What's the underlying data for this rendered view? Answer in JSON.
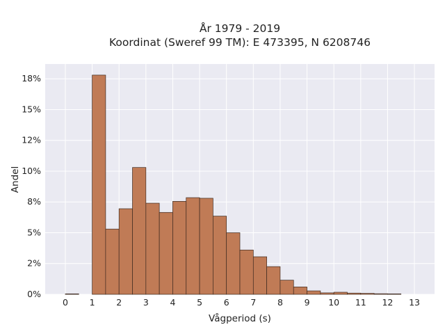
{
  "chart_data": {
    "type": "bar",
    "title_lines": [
      "År 1979 - 2019",
      "Koordinat (Sweref 99 TM): E 473395, N 6208746"
    ],
    "xlabel": "Vågperiod (s)",
    "ylabel": "Andel",
    "x_ticks": [
      "0",
      "1",
      "2",
      "3",
      "4",
      "5",
      "6",
      "7",
      "8",
      "9",
      "10",
      "11",
      "12",
      "13"
    ],
    "y_ticks": [
      "0%",
      "2%",
      "5%",
      "8%",
      "10%",
      "12%",
      "15%",
      "18%"
    ],
    "y_tick_values": [
      0,
      2.5,
      5,
      7.5,
      10,
      12.5,
      15,
      17.5
    ],
    "xlim": [
      -0.75,
      13.75
    ],
    "ylim": [
      0,
      18.7
    ],
    "bin_width": 0.5,
    "bins": [
      {
        "x0": 0.0,
        "value": 0.04
      },
      {
        "x0": 1.0,
        "value": 17.8
      },
      {
        "x0": 1.5,
        "value": 5.3
      },
      {
        "x0": 2.0,
        "value": 6.95
      },
      {
        "x0": 2.5,
        "value": 10.3
      },
      {
        "x0": 3.0,
        "value": 7.4
      },
      {
        "x0": 3.5,
        "value": 6.65
      },
      {
        "x0": 4.0,
        "value": 7.55
      },
      {
        "x0": 4.5,
        "value": 7.85
      },
      {
        "x0": 5.0,
        "value": 7.8
      },
      {
        "x0": 5.5,
        "value": 6.35
      },
      {
        "x0": 6.0,
        "value": 5.0
      },
      {
        "x0": 6.5,
        "value": 3.6
      },
      {
        "x0": 7.0,
        "value": 3.05
      },
      {
        "x0": 7.5,
        "value": 2.25
      },
      {
        "x0": 8.0,
        "value": 1.15
      },
      {
        "x0": 8.5,
        "value": 0.6
      },
      {
        "x0": 9.0,
        "value": 0.28
      },
      {
        "x0": 9.5,
        "value": 0.12
      },
      {
        "x0": 10.0,
        "value": 0.17
      },
      {
        "x0": 10.5,
        "value": 0.1
      },
      {
        "x0": 11.0,
        "value": 0.08
      },
      {
        "x0": 11.5,
        "value": 0.05
      },
      {
        "x0": 12.0,
        "value": 0.04
      }
    ],
    "grid": true,
    "colors": {
      "bar_fill": "#c07b56",
      "bar_edge": "#3d2a20",
      "plot_background": "#eaeaf2",
      "grid": "#ffffff"
    }
  }
}
